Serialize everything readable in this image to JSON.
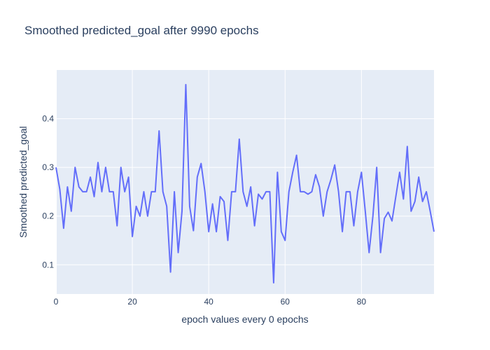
{
  "chart_data": {
    "type": "line",
    "title": "Smoothed predicted_goal after 9990 epochs",
    "xlabel": "epoch values every 0 epochs",
    "ylabel": "Smoothed predicted_goal",
    "xlim": [
      0,
      99
    ],
    "ylim": [
      0.04,
      0.5
    ],
    "x_ticks": [
      0,
      20,
      40,
      60,
      80
    ],
    "y_ticks": [
      0.1,
      0.2,
      0.3,
      0.4
    ],
    "grid": true,
    "colors": {
      "line": "#636efa",
      "plot_bg": "#e5ecf6",
      "grid": "#ffffff",
      "text": "#2a3f5f"
    },
    "series": [
      {
        "x": [
          0,
          1,
          2,
          3,
          4,
          5,
          6,
          7,
          8,
          9,
          10,
          11,
          12,
          13,
          14,
          15,
          16,
          17,
          18,
          19,
          20,
          21,
          22,
          23,
          24,
          25,
          26,
          27,
          28,
          29,
          30,
          31,
          32,
          33,
          34,
          35,
          36,
          37,
          38,
          39,
          40,
          41,
          42,
          43,
          44,
          45,
          46,
          47,
          48,
          49,
          50,
          51,
          52,
          53,
          54,
          55,
          56,
          57,
          58,
          59,
          60,
          61,
          62,
          63,
          64,
          65,
          66,
          67,
          68,
          69,
          70,
          71,
          72,
          73,
          74,
          75,
          76,
          77,
          78,
          79,
          80,
          81,
          82,
          83,
          84,
          85,
          86,
          87,
          88,
          89,
          90,
          91,
          92,
          93,
          94,
          95,
          96,
          97,
          98,
          99
        ],
        "values": [
          0.3,
          0.255,
          0.175,
          0.26,
          0.21,
          0.3,
          0.26,
          0.25,
          0.25,
          0.28,
          0.24,
          0.31,
          0.25,
          0.3,
          0.25,
          0.25,
          0.18,
          0.3,
          0.25,
          0.28,
          0.158,
          0.22,
          0.2,
          0.25,
          0.2,
          0.25,
          0.25,
          0.375,
          0.25,
          0.22,
          0.085,
          0.25,
          0.125,
          0.21,
          0.47,
          0.22,
          0.17,
          0.28,
          0.308,
          0.25,
          0.168,
          0.225,
          0.168,
          0.24,
          0.23,
          0.15,
          0.25,
          0.25,
          0.358,
          0.25,
          0.22,
          0.26,
          0.18,
          0.245,
          0.235,
          0.25,
          0.25,
          0.063,
          0.29,
          0.168,
          0.15,
          0.25,
          0.29,
          0.325,
          0.25,
          0.25,
          0.245,
          0.25,
          0.285,
          0.26,
          0.2,
          0.25,
          0.275,
          0.305,
          0.25,
          0.168,
          0.25,
          0.25,
          0.18,
          0.25,
          0.29,
          0.21,
          0.125,
          0.2,
          0.3,
          0.125,
          0.195,
          0.208,
          0.19,
          0.24,
          0.29,
          0.235,
          0.343,
          0.21,
          0.23,
          0.28,
          0.23,
          0.25,
          0.21,
          0.168
        ]
      }
    ]
  }
}
